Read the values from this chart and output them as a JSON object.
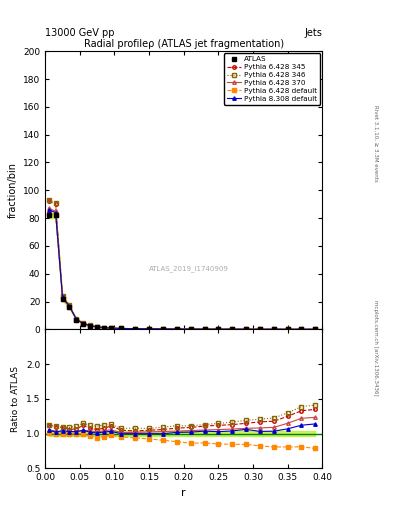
{
  "title": "Radial profileρ (ATLAS jet fragmentation)",
  "top_left_label": "13000 GeV pp",
  "top_right_label": "Jets",
  "right_label_top": "Rivet 3.1.10, ≥ 3.3M events",
  "right_label_bottom": "mcplots.cern.ch [arXiv:1306.3436]",
  "watermark": "ATLAS_2019_I1740909",
  "ylabel_main": "fraction/bin",
  "ylabel_ratio": "Ratio to ATLAS",
  "xlabel": "r",
  "xlim": [
    0.0,
    0.4
  ],
  "ylim_main": [
    0,
    200
  ],
  "ylim_ratio": [
    0.5,
    2.5
  ],
  "yticks_main": [
    0,
    20,
    40,
    60,
    80,
    100,
    120,
    140,
    160,
    180,
    200
  ],
  "yticks_ratio": [
    0.5,
    1.0,
    1.5,
    2.0
  ],
  "r_values": [
    0.005,
    0.015,
    0.025,
    0.035,
    0.045,
    0.055,
    0.065,
    0.075,
    0.085,
    0.095,
    0.11,
    0.13,
    0.15,
    0.17,
    0.19,
    0.21,
    0.23,
    0.25,
    0.27,
    0.29,
    0.31,
    0.33,
    0.35,
    0.37,
    0.39
  ],
  "atlas_data": [
    82,
    82,
    22,
    16,
    7,
    4,
    2.5,
    1.8,
    1.2,
    0.9,
    0.65,
    0.5,
    0.4,
    0.32,
    0.26,
    0.22,
    0.19,
    0.17,
    0.15,
    0.13,
    0.12,
    0.11,
    0.1,
    0.09,
    0.085
  ],
  "atlas_err": [
    2,
    2,
    1,
    0.8,
    0.4,
    0.2,
    0.15,
    0.12,
    0.08,
    0.06,
    0.04,
    0.03,
    0.025,
    0.02,
    0.018,
    0.015,
    0.013,
    0.012,
    0.011,
    0.01,
    0.009,
    0.009,
    0.008,
    0.008,
    0.007
  ],
  "p6_345_data": [
    92,
    90,
    24,
    17,
    7.5,
    4.5,
    2.7,
    1.9,
    1.3,
    1.0,
    0.68,
    0.52,
    0.42,
    0.34,
    0.28,
    0.24,
    0.21,
    0.19,
    0.17,
    0.15,
    0.14,
    0.13,
    0.125,
    0.12,
    0.115
  ],
  "p6_346_data": [
    93,
    91,
    24,
    17.5,
    7.8,
    4.6,
    2.8,
    2.0,
    1.35,
    1.02,
    0.7,
    0.54,
    0.43,
    0.35,
    0.29,
    0.245,
    0.215,
    0.195,
    0.175,
    0.155,
    0.145,
    0.135,
    0.13,
    0.125,
    0.12
  ],
  "p6_370_data": [
    87,
    85,
    22.5,
    16.5,
    7.2,
    4.2,
    2.6,
    1.85,
    1.25,
    0.95,
    0.66,
    0.51,
    0.41,
    0.33,
    0.27,
    0.23,
    0.2,
    0.18,
    0.16,
    0.14,
    0.13,
    0.12,
    0.115,
    0.11,
    0.105
  ],
  "p6_def_data": [
    83,
    82,
    22,
    16,
    7.0,
    4.0,
    2.4,
    1.7,
    1.15,
    0.88,
    0.62,
    0.47,
    0.37,
    0.29,
    0.23,
    0.19,
    0.165,
    0.145,
    0.127,
    0.11,
    0.099,
    0.089,
    0.081,
    0.073,
    0.067
  ],
  "p8_def_data": [
    86,
    84,
    23,
    16.5,
    7.2,
    4.2,
    2.55,
    1.82,
    1.23,
    0.93,
    0.65,
    0.5,
    0.4,
    0.32,
    0.265,
    0.225,
    0.197,
    0.175,
    0.156,
    0.138,
    0.124,
    0.114,
    0.107,
    0.101,
    0.097
  ],
  "color_p6_345": "#cc0000",
  "color_p6_346": "#886600",
  "color_p6_370": "#cc4444",
  "color_p6_def": "#ff8800",
  "color_p8_def": "#0000cc",
  "color_atlas": "#000000",
  "color_band": "#aaee00",
  "ratio_p6_345": [
    1.12,
    1.1,
    1.09,
    1.06,
    1.07,
    1.12,
    1.08,
    1.06,
    1.08,
    1.11,
    1.05,
    1.04,
    1.05,
    1.06,
    1.08,
    1.09,
    1.11,
    1.12,
    1.13,
    1.15,
    1.17,
    1.18,
    1.25,
    1.33,
    1.35
  ],
  "ratio_p6_346": [
    1.13,
    1.11,
    1.09,
    1.09,
    1.11,
    1.15,
    1.12,
    1.11,
    1.125,
    1.133,
    1.077,
    1.08,
    1.075,
    1.094,
    1.115,
    1.114,
    1.132,
    1.147,
    1.167,
    1.192,
    1.208,
    1.227,
    1.3,
    1.389,
    1.412
  ],
  "ratio_p6_370": [
    1.06,
    1.037,
    1.023,
    1.031,
    1.029,
    1.05,
    1.04,
    1.028,
    1.042,
    1.056,
    1.015,
    1.02,
    1.025,
    1.031,
    1.038,
    1.045,
    1.053,
    1.059,
    1.067,
    1.077,
    1.083,
    1.091,
    1.15,
    1.222,
    1.235
  ],
  "ratio_p6_def": [
    1.01,
    1.0,
    1.0,
    1.0,
    1.0,
    1.0,
    0.96,
    0.944,
    0.958,
    0.978,
    0.954,
    0.94,
    0.925,
    0.906,
    0.885,
    0.864,
    0.868,
    0.853,
    0.847,
    0.846,
    0.825,
    0.809,
    0.81,
    0.811,
    0.788
  ],
  "ratio_p8_def": [
    1.049,
    1.024,
    1.045,
    1.031,
    1.029,
    1.05,
    1.02,
    1.011,
    1.025,
    1.033,
    1.0,
    1.0,
    1.0,
    1.0,
    1.019,
    1.023,
    1.037,
    1.029,
    1.04,
    1.062,
    1.033,
    1.036,
    1.07,
    1.122,
    1.141
  ]
}
